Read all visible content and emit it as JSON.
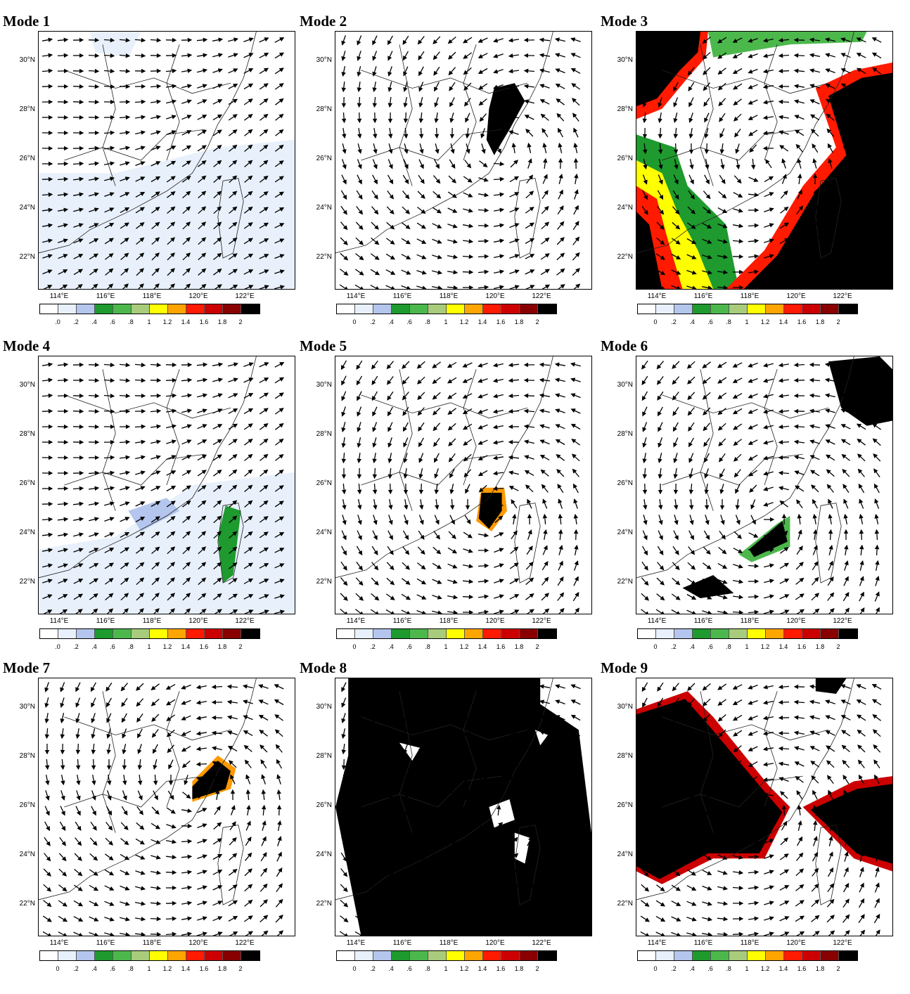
{
  "panels": [
    {
      "title": "Mode 1",
      "pattern": "westerly",
      "blobs": "light",
      "tick_labels": [
        ".0",
        ".2",
        ".4",
        ".6",
        ".8",
        "1",
        "1.2",
        "1.4",
        "1.6",
        "1.8",
        "2"
      ]
    },
    {
      "title": "Mode 2",
      "pattern": "cyclone",
      "center": [
        0.66,
        0.45
      ],
      "blobs": "m2",
      "tick_labels": [
        "0",
        ".2",
        ".4",
        ".6",
        ".8",
        "1",
        "1.2",
        "1.4",
        "1.6",
        "1.8",
        "2"
      ]
    },
    {
      "title": "Mode 3",
      "pattern": "cyclone",
      "center": [
        0.5,
        0.52
      ],
      "blobs": "m3",
      "tick_labels": [
        "0",
        ".2",
        ".4",
        ".6",
        ".8",
        "1",
        "1.2",
        "1.4",
        "1.6",
        "1.8",
        "2"
      ]
    },
    {
      "title": "Mode 4",
      "pattern": "westerly",
      "blobs": "m4",
      "tick_labels": [
        ".0",
        ".2",
        ".4",
        ".6",
        ".8",
        "1",
        "1.2",
        "1.4",
        "1.6",
        "1.8",
        "2"
      ]
    },
    {
      "title": "Mode 5",
      "pattern": "cyclone",
      "center": [
        0.62,
        0.6
      ],
      "blobs": "m5",
      "tick_labels": [
        "0",
        ".2",
        ".4",
        ".6",
        ".8",
        "1",
        "1.2",
        "1.4",
        "1.6",
        "1.8",
        "2"
      ]
    },
    {
      "title": "Mode 6",
      "pattern": "cyclone",
      "center": [
        0.52,
        0.62
      ],
      "blobs": "m6",
      "tick_labels": [
        "0",
        ".2",
        ".4",
        ".6",
        ".8",
        "1",
        "1.2",
        "1.4",
        "1.6",
        "1.8",
        "2"
      ]
    },
    {
      "title": "Mode 7",
      "pattern": "cyclone",
      "center": [
        0.62,
        0.42
      ],
      "blobs": "m7",
      "tick_labels": [
        "0",
        ".2",
        ".4",
        ".6",
        ".8",
        "1",
        "1.2",
        "1.4",
        "1.6",
        "1.8",
        "2"
      ]
    },
    {
      "title": "Mode 8",
      "pattern": "cyclone",
      "center": [
        0.6,
        0.5
      ],
      "blobs": "m8",
      "tick_labels": [
        "0",
        ".2",
        ".4",
        ".6",
        ".8",
        "1",
        "1.2",
        "1.4",
        "1.6",
        "1.8",
        "2"
      ]
    },
    {
      "title": "Mode 9",
      "pattern": "cyclone",
      "center": [
        0.5,
        0.5
      ],
      "blobs": "m9",
      "tick_labels": [
        "0",
        ".2",
        ".4",
        ".6",
        ".8",
        "1",
        "1.2",
        "1.4",
        "1.6",
        "1.8",
        "2"
      ]
    }
  ],
  "lat_labels": [
    "30°N",
    "28°N",
    "26°N",
    "24°N",
    "22°N"
  ],
  "lon_labels": [
    "114°E",
    "116°E",
    "118°E",
    "120°E",
    "122°E"
  ],
  "colorbar_colors": [
    "#ffffff",
    "#e8f0fb",
    "#b4c6ee",
    "#1e9a2e",
    "#4cb84c",
    "#a8cc7c",
    "#ffff00",
    "#ffa500",
    "#ff1a00",
    "#cc0000",
    "#880000",
    "#000000"
  ]
}
